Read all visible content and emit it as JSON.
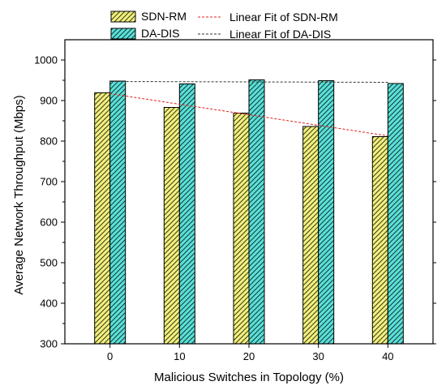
{
  "chart_data": {
    "type": "bar",
    "categories": [
      "0",
      "10",
      "20",
      "30",
      "40"
    ],
    "series": [
      {
        "name": "SDN-RM",
        "values": [
          919,
          883,
          869,
          836,
          811
        ],
        "color": "#f2f080",
        "hatch": "#3b3a10"
      },
      {
        "name": "DA-DIS",
        "values": [
          948,
          941,
          951,
          949,
          942
        ],
        "color": "#5ce0d8",
        "hatch": "#0e3a38"
      }
    ],
    "fits": [
      {
        "name": "Linear Fit of SDN-RM",
        "start": 917,
        "end": 813,
        "color": "#e02020"
      },
      {
        "name": "Linear Fit of DA-DIS",
        "start": 947,
        "end": 945,
        "color": "#333333"
      }
    ],
    "xlabel": "Malicious Switches in Topology (%)",
    "ylabel": "Average Network Throughput (Mbps)",
    "ylim": [
      300,
      1050
    ],
    "yticks": [
      300,
      400,
      500,
      600,
      700,
      800,
      900,
      1000
    ],
    "legend_position": "top",
    "grid": false
  }
}
